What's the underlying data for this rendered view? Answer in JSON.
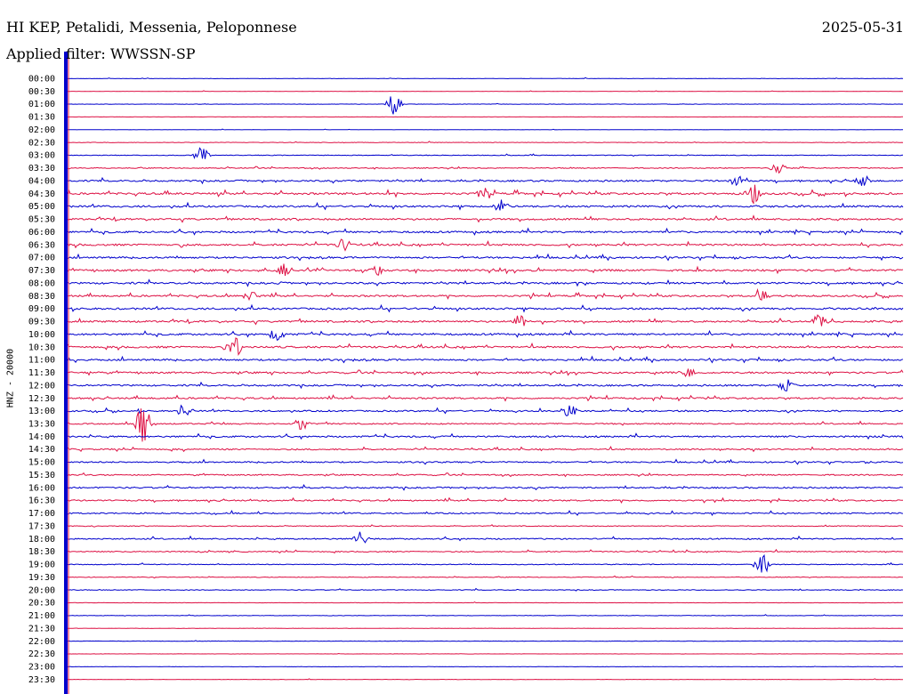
{
  "header": {
    "station": "HI KEP, Petalidi, Messenia, Peloponnese",
    "date": "2025-05-31",
    "filter": "Applied filter: WWSSN-SP"
  },
  "chart_data": {
    "type": "line",
    "title": "HI KEP, Petalidi, Messenia, Peloponnese",
    "subtitle": "Applied filter: WWSSN-SP",
    "date": "2025-05-31",
    "ylabel": "HNZ - 20000",
    "xlabel": "",
    "trace_colors": [
      "#0000cc",
      "#dd1144"
    ],
    "rows": [
      "00:00",
      "00:30",
      "01:00",
      "01:30",
      "02:00",
      "02:30",
      "03:00",
      "03:30",
      "04:00",
      "04:30",
      "05:00",
      "05:30",
      "06:00",
      "06:30",
      "07:00",
      "07:30",
      "08:00",
      "08:30",
      "09:00",
      "09:30",
      "10:00",
      "10:30",
      "11:00",
      "11:30",
      "12:00",
      "12:30",
      "13:00",
      "13:30",
      "14:00",
      "14:30",
      "15:00",
      "15:30",
      "16:00",
      "16:30",
      "17:00",
      "17:30",
      "18:00",
      "18:30",
      "19:00",
      "19:30",
      "20:00",
      "20:30",
      "21:00",
      "21:30",
      "22:00",
      "22:30",
      "23:00",
      "23:30"
    ],
    "activity": [
      0.15,
      0.1,
      0.15,
      0.1,
      0.1,
      0.25,
      0.3,
      0.4,
      0.7,
      0.85,
      0.8,
      0.8,
      0.8,
      0.8,
      0.75,
      0.85,
      0.8,
      0.75,
      0.8,
      0.8,
      0.8,
      0.8,
      0.75,
      0.75,
      0.7,
      0.7,
      0.65,
      0.55,
      0.7,
      0.6,
      0.6,
      0.55,
      0.65,
      0.6,
      0.55,
      0.35,
      0.55,
      0.45,
      0.35,
      0.3,
      0.3,
      0.15,
      0.2,
      0.15,
      0.2,
      0.1,
      0.15,
      0.15
    ],
    "events": [
      {
        "row": "01:00",
        "pos": 0.39,
        "amp": 1.5
      },
      {
        "row": "03:00",
        "pos": 0.16,
        "amp": 1.2
      },
      {
        "row": "03:30",
        "pos": 0.85,
        "amp": 0.9
      },
      {
        "row": "04:00",
        "pos": 0.8,
        "amp": 0.9
      },
      {
        "row": "04:00",
        "pos": 0.95,
        "amp": 1.0
      },
      {
        "row": "04:30",
        "pos": 0.5,
        "amp": 1.0
      },
      {
        "row": "04:30",
        "pos": 0.82,
        "amp": 1.4
      },
      {
        "row": "05:00",
        "pos": 0.52,
        "amp": 1.0
      },
      {
        "row": "06:30",
        "pos": 0.33,
        "amp": 1.0
      },
      {
        "row": "07:30",
        "pos": 0.26,
        "amp": 1.0
      },
      {
        "row": "07:30",
        "pos": 0.37,
        "amp": 1.0
      },
      {
        "row": "08:30",
        "pos": 0.22,
        "amp": 1.0
      },
      {
        "row": "08:30",
        "pos": 0.83,
        "amp": 1.5
      },
      {
        "row": "09:30",
        "pos": 0.54,
        "amp": 1.0
      },
      {
        "row": "09:30",
        "pos": 0.9,
        "amp": 1.2
      },
      {
        "row": "10:00",
        "pos": 0.25,
        "amp": 1.0
      },
      {
        "row": "10:30",
        "pos": 0.2,
        "amp": 1.5
      },
      {
        "row": "11:30",
        "pos": 0.74,
        "amp": 1.0
      },
      {
        "row": "12:00",
        "pos": 0.86,
        "amp": 1.0
      },
      {
        "row": "13:00",
        "pos": 0.14,
        "amp": 1.0
      },
      {
        "row": "13:00",
        "pos": 0.6,
        "amp": 0.9
      },
      {
        "row": "13:30",
        "pos": 0.09,
        "amp": 4.0
      },
      {
        "row": "13:30",
        "pos": 0.28,
        "amp": 1.0
      },
      {
        "row": "18:00",
        "pos": 0.35,
        "amp": 1.0
      },
      {
        "row": "19:00",
        "pos": 0.83,
        "amp": 2.0
      }
    ]
  }
}
